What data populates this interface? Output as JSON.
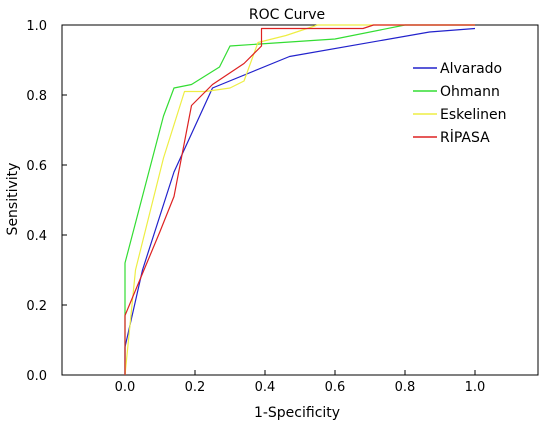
{
  "chart_data": {
    "type": "line",
    "title": "ROC Curve",
    "xlabel": "1-Specificity",
    "ylabel": "Sensitivity",
    "xlim": [
      -0.18,
      1.18
    ],
    "ylim": [
      0,
      1
    ],
    "xticks": [
      "0.0",
      "0.2",
      "0.4",
      "0.6",
      "0.8",
      "1.0"
    ],
    "yticks": [
      "0.0",
      "0.2",
      "0.4",
      "0.6",
      "0.8",
      "1.0"
    ],
    "grid": false,
    "legend_position": "top-right",
    "series": [
      {
        "name": "Alvarado",
        "color": "#2222cc",
        "points": [
          [
            0,
            0
          ],
          [
            0,
            0.08
          ],
          [
            0.05,
            0.3
          ],
          [
            0.14,
            0.58
          ],
          [
            0.25,
            0.82
          ],
          [
            0.47,
            0.91
          ],
          [
            0.87,
            0.98
          ],
          [
            1.0,
            0.99
          ]
        ]
      },
      {
        "name": "Ohmann",
        "color": "#33dd33",
        "points": [
          [
            0,
            0
          ],
          [
            0,
            0.32
          ],
          [
            0.11,
            0.74
          ],
          [
            0.14,
            0.82
          ],
          [
            0.19,
            0.83
          ],
          [
            0.27,
            0.88
          ],
          [
            0.3,
            0.94
          ],
          [
            0.6,
            0.96
          ],
          [
            0.8,
            1.0
          ],
          [
            1.0,
            1.0
          ]
        ]
      },
      {
        "name": "Eskelinen",
        "color": "#eeee44",
        "points": [
          [
            0,
            0
          ],
          [
            0.03,
            0.3
          ],
          [
            0.11,
            0.62
          ],
          [
            0.17,
            0.81
          ],
          [
            0.23,
            0.81
          ],
          [
            0.3,
            0.82
          ],
          [
            0.34,
            0.84
          ],
          [
            0.38,
            0.95
          ],
          [
            0.46,
            0.97
          ],
          [
            0.55,
            1.0
          ],
          [
            1.0,
            1.0
          ]
        ]
      },
      {
        "name": "RİPASA",
        "color": "#dd2222",
        "points": [
          [
            0,
            0
          ],
          [
            0,
            0.17
          ],
          [
            0.05,
            0.29
          ],
          [
            0.1,
            0.41
          ],
          [
            0.14,
            0.51
          ],
          [
            0.19,
            0.77
          ],
          [
            0.25,
            0.83
          ],
          [
            0.34,
            0.89
          ],
          [
            0.39,
            0.94
          ],
          [
            0.39,
            0.99
          ],
          [
            0.68,
            0.99
          ],
          [
            0.71,
            1.0
          ],
          [
            1.0,
            1.0
          ]
        ]
      }
    ]
  }
}
